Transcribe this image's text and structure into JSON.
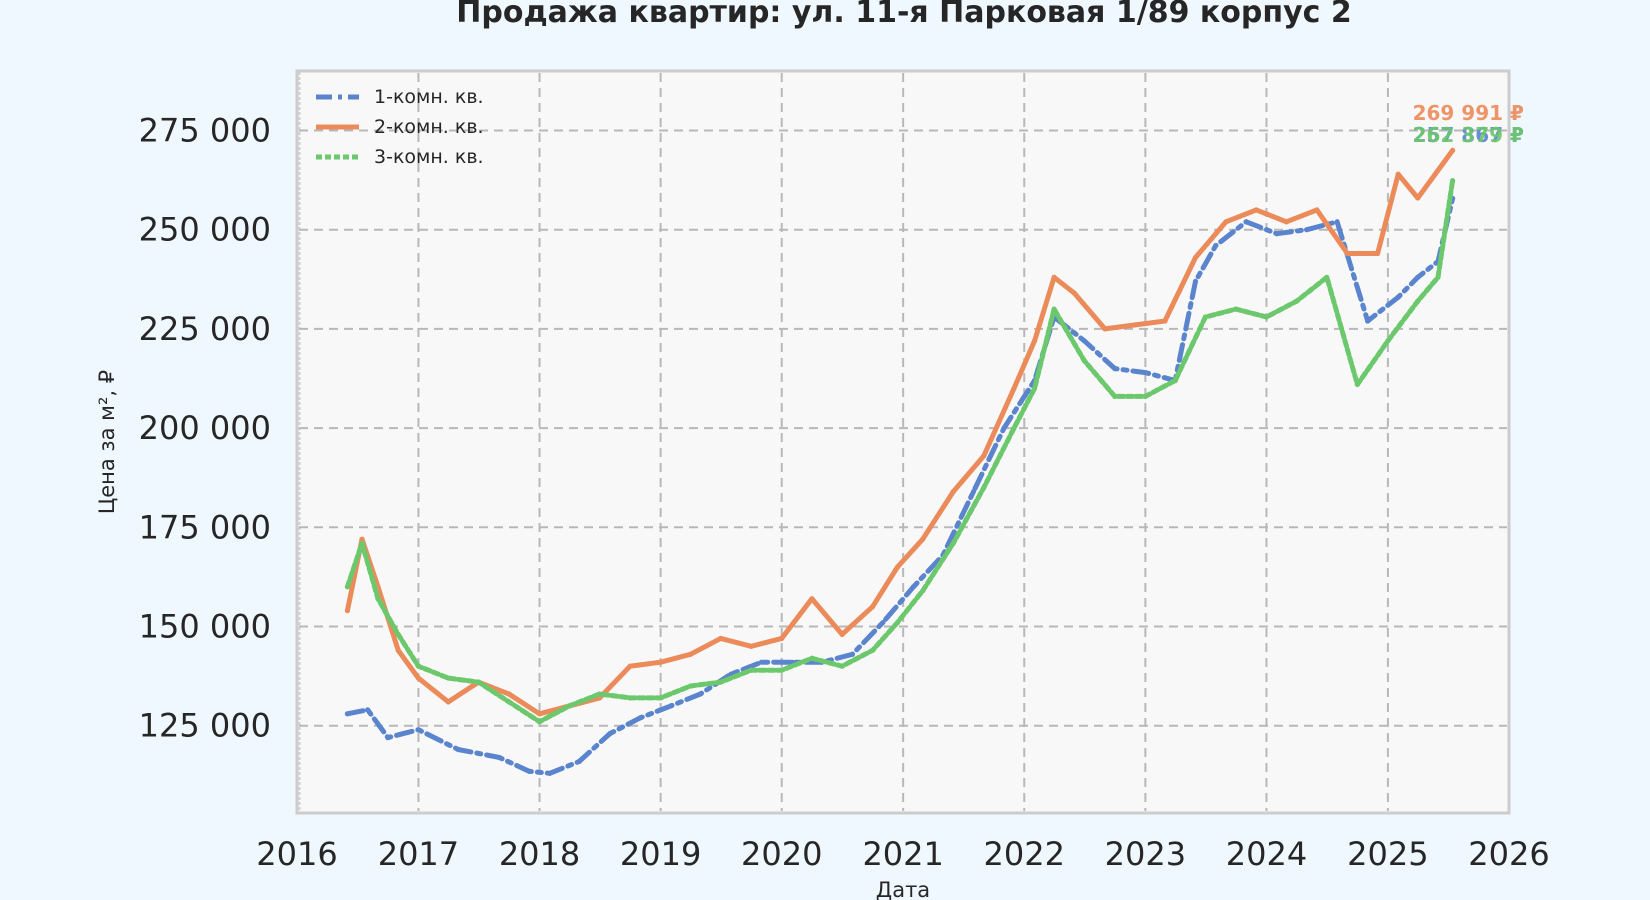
{
  "chart_data": {
    "type": "line",
    "title": "Продажа квартир: ул. 11-я Парковая 1/89 корпус 2",
    "xlabel": "Дата",
    "ylabel": "Цена за м², ₽",
    "x_ticks": [
      "2016",
      "2017",
      "2018",
      "2019",
      "2020",
      "2021",
      "2022",
      "2023",
      "2024",
      "2025",
      "2026"
    ],
    "y_ticks": [
      "125 000",
      "150 000",
      "175 000",
      "200 000",
      "225 000",
      "250 000",
      "275 000"
    ],
    "xlim": [
      "2016-01-01",
      "2026-01-01"
    ],
    "ylim": [
      103000,
      290000
    ],
    "grid": true,
    "legend_position": "top-left",
    "series": [
      {
        "name": "1-комн. кв.",
        "color": "#5a84cd",
        "dash": "dashdot",
        "end_label": "257 867 ₽",
        "points": [
          [
            "2016-06-01",
            128000
          ],
          [
            "2016-08-01",
            129000
          ],
          [
            "2016-10-01",
            122000
          ],
          [
            "2017-01-01",
            124000
          ],
          [
            "2017-05-01",
            119000
          ],
          [
            "2017-09-01",
            117000
          ],
          [
            "2017-12-01",
            113500
          ],
          [
            "2018-02-01",
            113000
          ],
          [
            "2018-05-01",
            116000
          ],
          [
            "2018-08-01",
            123000
          ],
          [
            "2018-11-01",
            127000
          ],
          [
            "2019-02-01",
            130000
          ],
          [
            "2019-05-01",
            133000
          ],
          [
            "2019-08-01",
            138000
          ],
          [
            "2019-11-01",
            141000
          ],
          [
            "2020-02-01",
            141000
          ],
          [
            "2020-05-01",
            141000
          ],
          [
            "2020-08-01",
            143000
          ],
          [
            "2020-11-01",
            151000
          ],
          [
            "2021-02-01",
            160000
          ],
          [
            "2021-05-01",
            168000
          ],
          [
            "2021-08-01",
            184000
          ],
          [
            "2021-11-01",
            200000
          ],
          [
            "2022-02-01",
            212000
          ],
          [
            "2022-04-01",
            228000
          ],
          [
            "2022-07-01",
            222000
          ],
          [
            "2022-10-01",
            215000
          ],
          [
            "2023-01-01",
            214000
          ],
          [
            "2023-04-01",
            212000
          ],
          [
            "2023-06-01",
            237000
          ],
          [
            "2023-08-01",
            246000
          ],
          [
            "2023-11-01",
            252000
          ],
          [
            "2024-02-01",
            249000
          ],
          [
            "2024-05-01",
            250000
          ],
          [
            "2024-08-01",
            252000
          ],
          [
            "2024-11-01",
            227000
          ],
          [
            "2025-02-01",
            233000
          ],
          [
            "2025-04-01",
            238000
          ],
          [
            "2025-06-01",
            242000
          ],
          [
            "2025-07-15",
            257867
          ]
        ]
      },
      {
        "name": "2-комн. кв.",
        "color": "#ec8b5a",
        "dash": "solid",
        "end_label": "269 991 ₽",
        "points": [
          [
            "2016-06-01",
            154000
          ],
          [
            "2016-07-15",
            172000
          ],
          [
            "2016-09-01",
            160000
          ],
          [
            "2016-11-01",
            144000
          ],
          [
            "2017-01-01",
            137000
          ],
          [
            "2017-04-01",
            131000
          ],
          [
            "2017-07-01",
            136000
          ],
          [
            "2017-10-01",
            133000
          ],
          [
            "2018-01-01",
            128000
          ],
          [
            "2018-04-01",
            130000
          ],
          [
            "2018-07-01",
            132000
          ],
          [
            "2018-10-01",
            140000
          ],
          [
            "2019-01-01",
            141000
          ],
          [
            "2019-04-01",
            143000
          ],
          [
            "2019-07-01",
            147000
          ],
          [
            "2019-10-01",
            145000
          ],
          [
            "2020-01-01",
            147000
          ],
          [
            "2020-04-01",
            157000
          ],
          [
            "2020-07-01",
            148000
          ],
          [
            "2020-10-01",
            155000
          ],
          [
            "2020-12-15",
            165000
          ],
          [
            "2021-03-01",
            172000
          ],
          [
            "2021-06-01",
            184000
          ],
          [
            "2021-09-01",
            193000
          ],
          [
            "2021-12-01",
            210000
          ],
          [
            "2022-02-01",
            222000
          ],
          [
            "2022-04-01",
            238000
          ],
          [
            "2022-06-01",
            234000
          ],
          [
            "2022-09-01",
            225000
          ],
          [
            "2022-12-01",
            226000
          ],
          [
            "2023-03-01",
            227000
          ],
          [
            "2023-06-01",
            243000
          ],
          [
            "2023-09-01",
            252000
          ],
          [
            "2023-12-01",
            255000
          ],
          [
            "2024-03-01",
            252000
          ],
          [
            "2024-06-01",
            255000
          ],
          [
            "2024-09-01",
            244000
          ],
          [
            "2024-12-01",
            244000
          ],
          [
            "2025-02-01",
            264000
          ],
          [
            "2025-04-01",
            258000
          ],
          [
            "2025-07-15",
            269991
          ]
        ]
      },
      {
        "name": "3-комн. кв.",
        "color": "#6cc86c",
        "dash": "dotted",
        "end_label": "262 379 ₽",
        "points": [
          [
            "2016-06-01",
            160000
          ],
          [
            "2016-07-15",
            171000
          ],
          [
            "2016-09-01",
            157000
          ],
          [
            "2016-11-01",
            148000
          ],
          [
            "2017-01-01",
            140000
          ],
          [
            "2017-04-01",
            137000
          ],
          [
            "2017-07-01",
            136000
          ],
          [
            "2017-10-01",
            131000
          ],
          [
            "2018-01-01",
            126000
          ],
          [
            "2018-04-01",
            130000
          ],
          [
            "2018-07-01",
            133000
          ],
          [
            "2018-10-01",
            132000
          ],
          [
            "2019-01-01",
            132000
          ],
          [
            "2019-04-01",
            135000
          ],
          [
            "2019-07-01",
            136000
          ],
          [
            "2019-10-01",
            139000
          ],
          [
            "2020-01-01",
            139000
          ],
          [
            "2020-04-01",
            142000
          ],
          [
            "2020-07-01",
            140000
          ],
          [
            "2020-10-01",
            144000
          ],
          [
            "2020-12-15",
            151000
          ],
          [
            "2021-03-01",
            159000
          ],
          [
            "2021-06-01",
            171000
          ],
          [
            "2021-09-01",
            185000
          ],
          [
            "2021-12-01",
            200000
          ],
          [
            "2022-02-01",
            210000
          ],
          [
            "2022-04-01",
            230000
          ],
          [
            "2022-07-01",
            217000
          ],
          [
            "2022-10-01",
            208000
          ],
          [
            "2023-01-01",
            208000
          ],
          [
            "2023-04-01",
            212000
          ],
          [
            "2023-07-01",
            228000
          ],
          [
            "2023-10-01",
            230000
          ],
          [
            "2024-01-01",
            228000
          ],
          [
            "2024-04-01",
            232000
          ],
          [
            "2024-07-01",
            238000
          ],
          [
            "2024-10-01",
            211000
          ],
          [
            "2025-01-01",
            222000
          ],
          [
            "2025-04-01",
            232000
          ],
          [
            "2025-06-01",
            238000
          ],
          [
            "2025-07-15",
            262379
          ]
        ]
      }
    ]
  }
}
